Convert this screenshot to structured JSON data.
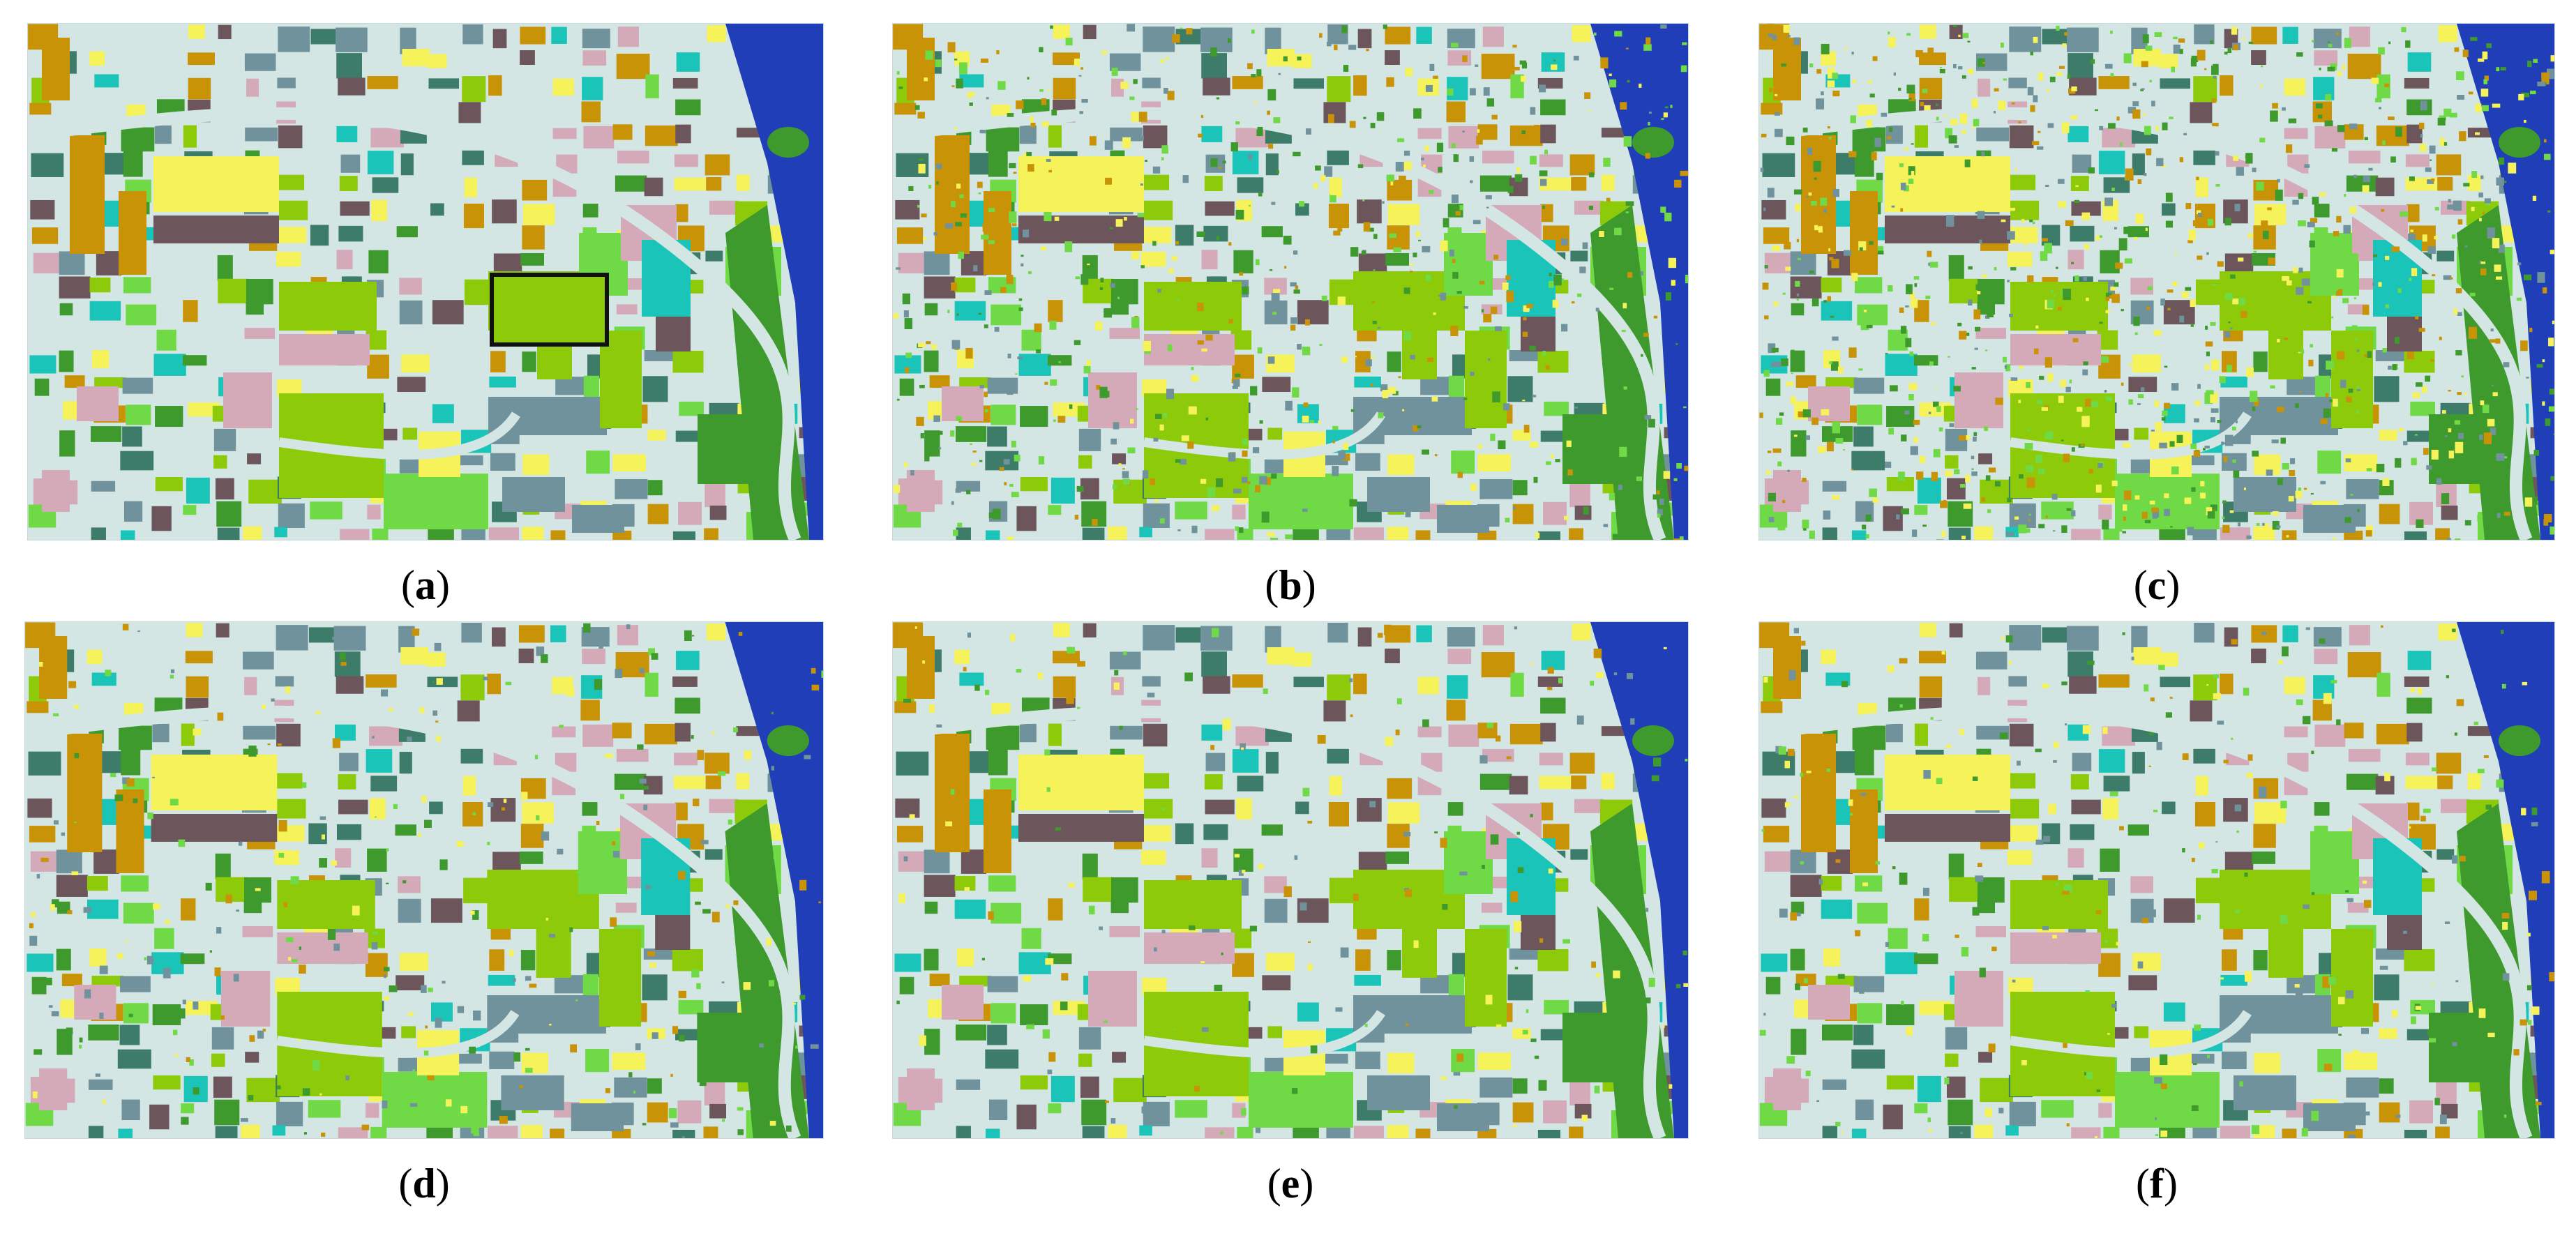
{
  "panels": [
    {
      "id": "a",
      "caption": "a",
      "noise": 0,
      "highlight": true
    },
    {
      "id": "b",
      "caption": "b",
      "noise": 0.45,
      "highlight": false
    },
    {
      "id": "c",
      "caption": "c",
      "noise": 0.7,
      "highlight": false
    },
    {
      "id": "d",
      "caption": "d",
      "noise": 0.2,
      "highlight": false
    },
    {
      "id": "e",
      "caption": "e",
      "noise": 0.12,
      "highlight": false
    },
    {
      "id": "f",
      "caption": "f",
      "noise": 0.18,
      "highlight": false
    }
  ],
  "colors": {
    "background": "#d3e6e4",
    "water": "#1f3eb8",
    "ochre": "#c99308",
    "mauve": "#6c565c",
    "teal": "#1bc4b8",
    "slate": "#6f929c",
    "dark-green": "#3f9a2e",
    "mid-green": "#6fda45",
    "lime": "#8dcb0a",
    "yellow": "#f5f25a",
    "pink": "#d5aab8",
    "sea-green": "#3c7c68",
    "road": "#d3e6e4"
  }
}
